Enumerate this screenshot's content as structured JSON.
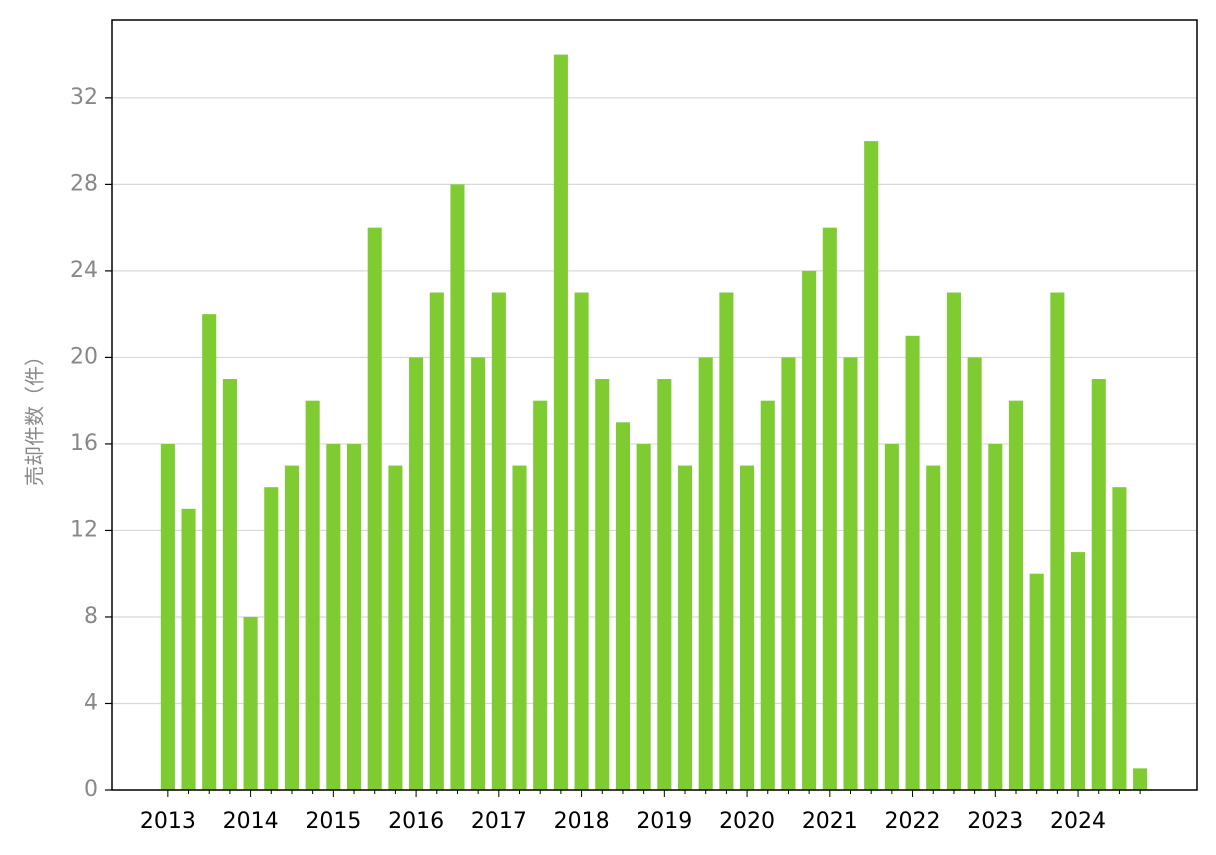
{
  "chart_data": {
    "type": "bar",
    "y_label": "売却件数（件）",
    "categories": [
      "2013",
      null,
      null,
      null,
      "2014",
      null,
      null,
      null,
      "2015",
      null,
      null,
      null,
      "2016",
      null,
      null,
      null,
      "2017",
      null,
      null,
      null,
      "2018",
      null,
      null,
      null,
      "2019",
      null,
      null,
      null,
      "2020",
      null,
      null,
      null,
      "2021",
      null,
      null,
      null,
      "2022",
      null,
      null,
      null,
      "2023",
      null,
      null,
      null,
      "2024",
      null,
      null,
      null
    ],
    "values": [
      16,
      13,
      22,
      19,
      8,
      14,
      15,
      18,
      16,
      16,
      26,
      15,
      20,
      23,
      28,
      20,
      23,
      15,
      18,
      34,
      23,
      19,
      17,
      16,
      19,
      15,
      20,
      23,
      15,
      18,
      20,
      24,
      26,
      20,
      30,
      16,
      21,
      15,
      23,
      20,
      16,
      18,
      10,
      23,
      11,
      19,
      14,
      1
    ],
    "color": "#7ecb32",
    "ylim": [
      0,
      35.6
    ],
    "yticks": [
      0,
      4,
      8,
      12,
      16,
      20,
      24,
      28,
      32
    ],
    "grid": true
  }
}
